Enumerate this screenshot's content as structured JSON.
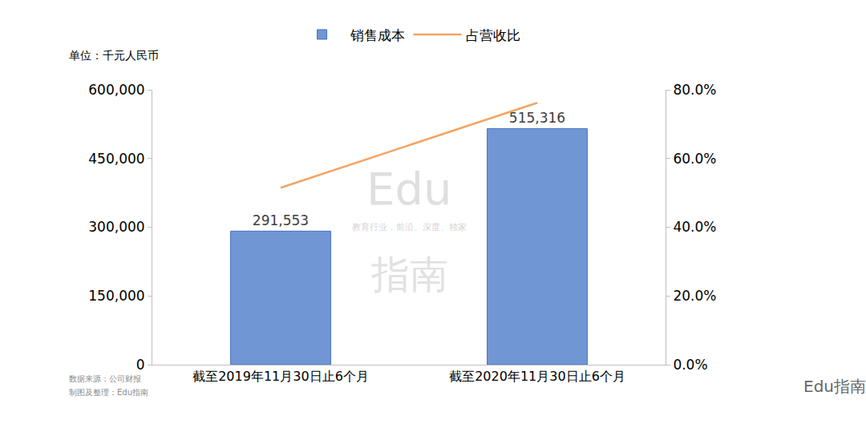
{
  "chart_data": {
    "type": "bar",
    "categories": [
      "截至2019年11月30日止6个月",
      "截至2020年11月30日止6个月"
    ],
    "series": [
      {
        "name": "销售成本",
        "type": "bar",
        "color": "#7096d4",
        "values": [
          291553,
          515316
        ],
        "value_labels": [
          "291,553",
          "515,316"
        ],
        "data_labels": true
      },
      {
        "name": "占营收比",
        "type": "line",
        "color": "#f4a462",
        "axis": "y2",
        "values": [
          51.5,
          76.2
        ]
      }
    ],
    "ylim": [
      0,
      600000
    ],
    "yticks": [
      0,
      {
        "value": 150000,
        "label": "150,000"
      },
      {
        "value": 300000,
        "label": "300,000"
      },
      {
        "value": 450000,
        "label": "450,000"
      },
      {
        "value": 600000,
        "label": "600,000"
      }
    ],
    "y2lim": [
      0,
      80
    ],
    "y2ticks": [
      {
        "value": 0,
        "label": "0.0%"
      },
      {
        "value": 20,
        "label": "20.0%"
      },
      {
        "value": 40,
        "label": "40.0%"
      },
      {
        "value": 60,
        "label": "60.0%"
      },
      {
        "value": 80,
        "label": "80.0%"
      }
    ],
    "grid": false,
    "legend": "top",
    "unit": "单位：千元人民币",
    "notes": [
      "数据来源：公司财报",
      "制图及整理：Edu指南"
    ],
    "watermark": [
      "Edu",
      "教育行业，前沿、深度、独家",
      "指南"
    ],
    "brand": "Edu指南"
  }
}
